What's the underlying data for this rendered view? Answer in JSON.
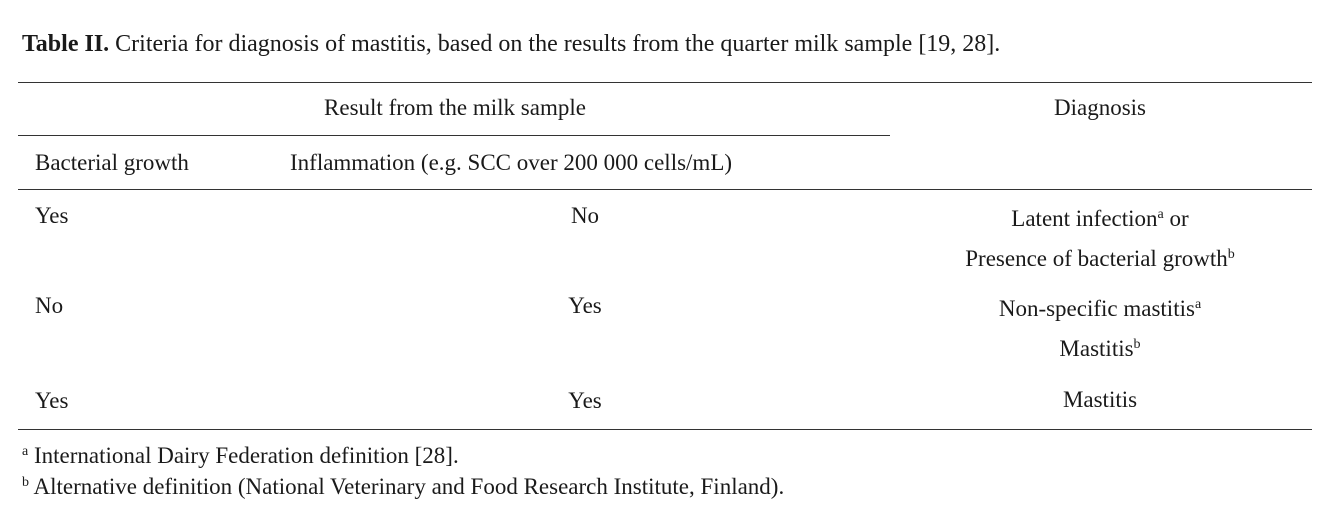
{
  "caption": {
    "label": "Table II.",
    "text": "Criteria for diagnosis of mastitis, based on the results from the quarter milk sample [19, 28]."
  },
  "table": {
    "header": {
      "group": "Result from the milk sample",
      "diagnosis": "Diagnosis",
      "columns": [
        "Bacterial growth",
        "Inflammation (e.g. SCC over 200 000 cells/mL)"
      ]
    },
    "rows": [
      {
        "bacterial": "Yes",
        "inflammation": "No",
        "diagnosis": [
          [
            {
              "text": "Latent infection"
            },
            {
              "sup": "a"
            },
            {
              "text": " or"
            }
          ],
          [
            {
              "text": "Presence of bacterial growth"
            },
            {
              "sup": "b"
            }
          ]
        ]
      },
      {
        "bacterial": "No",
        "inflammation": "Yes",
        "diagnosis": [
          [
            {
              "text": "Non-specific mastitis"
            },
            {
              "sup": "a"
            }
          ],
          [
            {
              "text": "Mastitis"
            },
            {
              "sup": "b"
            }
          ]
        ]
      },
      {
        "bacterial": "Yes",
        "inflammation": "Yes",
        "diagnosis": [
          [
            {
              "text": "Mastitis"
            }
          ]
        ]
      }
    ]
  },
  "footnotes": [
    {
      "mark": "a",
      "text": "International Dairy Federation definition [28]."
    },
    {
      "mark": "b",
      "text": "Alternative definition (National Veterinary and Food Research Institute, Finland)."
    }
  ]
}
